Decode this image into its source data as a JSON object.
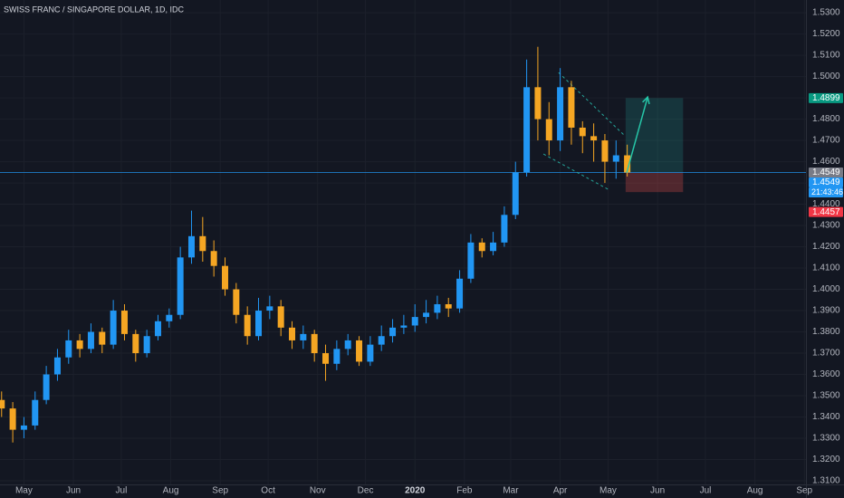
{
  "chart_data": {
    "type": "candlestick",
    "title": "SWISS FRANC / SINGAPORE DOLLAR, 1D, IDC",
    "up_color": "#2196f3",
    "down_color": "#f5a623",
    "x": [
      -14,
      -7,
      0,
      7,
      14,
      21,
      28,
      35,
      42,
      49,
      56,
      63,
      70,
      77,
      84,
      91,
      98,
      105,
      112,
      119,
      126,
      133,
      140,
      147,
      154,
      161,
      168,
      175,
      182,
      189,
      196,
      203,
      210,
      217,
      224,
      231,
      238,
      245,
      252,
      259,
      266,
      273,
      280,
      287,
      294,
      301,
      308,
      315,
      322,
      329,
      336,
      343,
      350,
      357,
      364,
      371,
      378
    ],
    "open": [
      1.348,
      1.344,
      1.334,
      1.336,
      1.348,
      1.36,
      1.368,
      1.376,
      1.372,
      1.38,
      1.374,
      1.39,
      1.379,
      1.37,
      1.378,
      1.385,
      1.388,
      1.415,
      1.425,
      1.418,
      1.411,
      1.4,
      1.388,
      1.378,
      1.39,
      1.392,
      1.382,
      1.376,
      1.379,
      1.37,
      1.365,
      1.372,
      1.376,
      1.366,
      1.374,
      1.378,
      1.382,
      1.383,
      1.387,
      1.389,
      1.393,
      1.391,
      1.405,
      1.422,
      1.418,
      1.422,
      1.435,
      1.455,
      1.495,
      1.48,
      1.47,
      1.495,
      1.476,
      1.472,
      1.47,
      1.46,
      1.463
    ],
    "high": [
      1.352,
      1.347,
      1.34,
      1.352,
      1.364,
      1.372,
      1.381,
      1.379,
      1.384,
      1.382,
      1.395,
      1.393,
      1.381,
      1.381,
      1.388,
      1.391,
      1.42,
      1.437,
      1.434,
      1.423,
      1.415,
      1.403,
      1.392,
      1.396,
      1.397,
      1.395,
      1.385,
      1.383,
      1.381,
      1.374,
      1.376,
      1.379,
      1.378,
      1.378,
      1.383,
      1.386,
      1.388,
      1.393,
      1.395,
      1.397,
      1.396,
      1.409,
      1.426,
      1.424,
      1.427,
      1.439,
      1.46,
      1.508,
      1.514,
      1.488,
      1.504,
      1.498,
      1.479,
      1.478,
      1.473,
      1.47,
      1.468
    ],
    "low": [
      1.34,
      1.328,
      1.33,
      1.334,
      1.346,
      1.357,
      1.365,
      1.368,
      1.37,
      1.37,
      1.372,
      1.376,
      1.366,
      1.368,
      1.376,
      1.382,
      1.386,
      1.412,
      1.413,
      1.406,
      1.397,
      1.384,
      1.374,
      1.376,
      1.386,
      1.378,
      1.372,
      1.372,
      1.366,
      1.357,
      1.362,
      1.369,
      1.364,
      1.364,
      1.371,
      1.375,
      1.379,
      1.38,
      1.384,
      1.386,
      1.387,
      1.389,
      1.403,
      1.415,
      1.416,
      1.42,
      1.433,
      1.453,
      1.47,
      1.463,
      1.465,
      1.468,
      1.464,
      1.46,
      1.45,
      1.452,
      1.453
    ],
    "close": [
      1.344,
      1.334,
      1.336,
      1.348,
      1.36,
      1.368,
      1.376,
      1.372,
      1.38,
      1.374,
      1.39,
      1.379,
      1.37,
      1.378,
      1.385,
      1.388,
      1.415,
      1.425,
      1.418,
      1.411,
      1.4,
      1.388,
      1.378,
      1.39,
      1.392,
      1.382,
      1.376,
      1.379,
      1.37,
      1.365,
      1.372,
      1.376,
      1.366,
      1.374,
      1.378,
      1.382,
      1.383,
      1.387,
      1.389,
      1.393,
      1.391,
      1.405,
      1.422,
      1.418,
      1.422,
      1.435,
      1.455,
      1.495,
      1.48,
      1.47,
      1.495,
      1.476,
      1.472,
      1.47,
      1.46,
      1.463,
      1.4549
    ],
    "xlim": [
      -15,
      490
    ],
    "ylim": [
      1.3083,
      1.536
    ],
    "xticks": [
      {
        "value": 0,
        "label": "May"
      },
      {
        "value": 31,
        "label": "Jun"
      },
      {
        "value": 61,
        "label": "Jul"
      },
      {
        "value": 92,
        "label": "Aug"
      },
      {
        "value": 123,
        "label": "Sep"
      },
      {
        "value": 153,
        "label": "Oct"
      },
      {
        "value": 184,
        "label": "Nov"
      },
      {
        "value": 214,
        "label": "Dec"
      },
      {
        "value": 245,
        "label": "2020"
      },
      {
        "value": 276,
        "label": "Feb"
      },
      {
        "value": 305,
        "label": "Mar"
      },
      {
        "value": 336,
        "label": "Apr"
      },
      {
        "value": 366,
        "label": "May"
      },
      {
        "value": 397,
        "label": "Jun"
      },
      {
        "value": 427,
        "label": "Jul"
      },
      {
        "value": 458,
        "label": "Aug"
      },
      {
        "value": 489,
        "label": "Sep"
      }
    ],
    "yticks": [
      {
        "value": 1.31,
        "label": "1.3100"
      },
      {
        "value": 1.32,
        "label": "1.3200"
      },
      {
        "value": 1.33,
        "label": "1.3300"
      },
      {
        "value": 1.34,
        "label": "1.3400"
      },
      {
        "value": 1.35,
        "label": "1.3500"
      },
      {
        "value": 1.36,
        "label": "1.3600"
      },
      {
        "value": 1.37,
        "label": "1.3700"
      },
      {
        "value": 1.38,
        "label": "1.3800"
      },
      {
        "value": 1.39,
        "label": "1.3900"
      },
      {
        "value": 1.4,
        "label": "1.4000"
      },
      {
        "value": 1.41,
        "label": "1.4100"
      },
      {
        "value": 1.42,
        "label": "1.4200"
      },
      {
        "value": 1.43,
        "label": "1.4300"
      },
      {
        "value": 1.44,
        "label": "1.4400"
      },
      {
        "value": 1.45,
        "label": "1.4500"
      },
      {
        "value": 1.46,
        "label": "1.4600"
      },
      {
        "value": 1.47,
        "label": "1.4700"
      },
      {
        "value": 1.48,
        "label": "1.4800"
      },
      {
        "value": 1.49,
        "label": "1.4900"
      },
      {
        "value": 1.5,
        "label": "1.5000"
      },
      {
        "value": 1.51,
        "label": "1.5100"
      },
      {
        "value": 1.52,
        "label": "1.5200"
      },
      {
        "value": 1.53,
        "label": "1.5300"
      }
    ],
    "grid": true,
    "price_line": 1.4549,
    "price_labels": [
      {
        "value": 1.4899,
        "color": "#089981"
      },
      {
        "value": 1.4549,
        "color": "#787b86"
      },
      {
        "value": 1.4549,
        "color": "#2196f3"
      },
      {
        "value": 1.4457,
        "color": "#f23645"
      }
    ],
    "countdown": {
      "label": "21:43:46",
      "color": "#2196f3"
    },
    "position": {
      "x": [
        377,
        413
      ],
      "entry": 1.4549,
      "target": 1.4899,
      "stop": 1.4457
    },
    "wedge": [
      {
        "x": [
          335,
          376.6
        ],
        "y": [
          1.5019,
          1.4721
        ]
      },
      {
        "x": [
          325.5,
          367
        ],
        "y": [
          1.4636,
          1.4466
        ]
      }
    ],
    "arrow": {
      "x": [
        377.7,
        390.8
      ],
      "y": [
        1.4549,
        1.4904
      ]
    }
  }
}
